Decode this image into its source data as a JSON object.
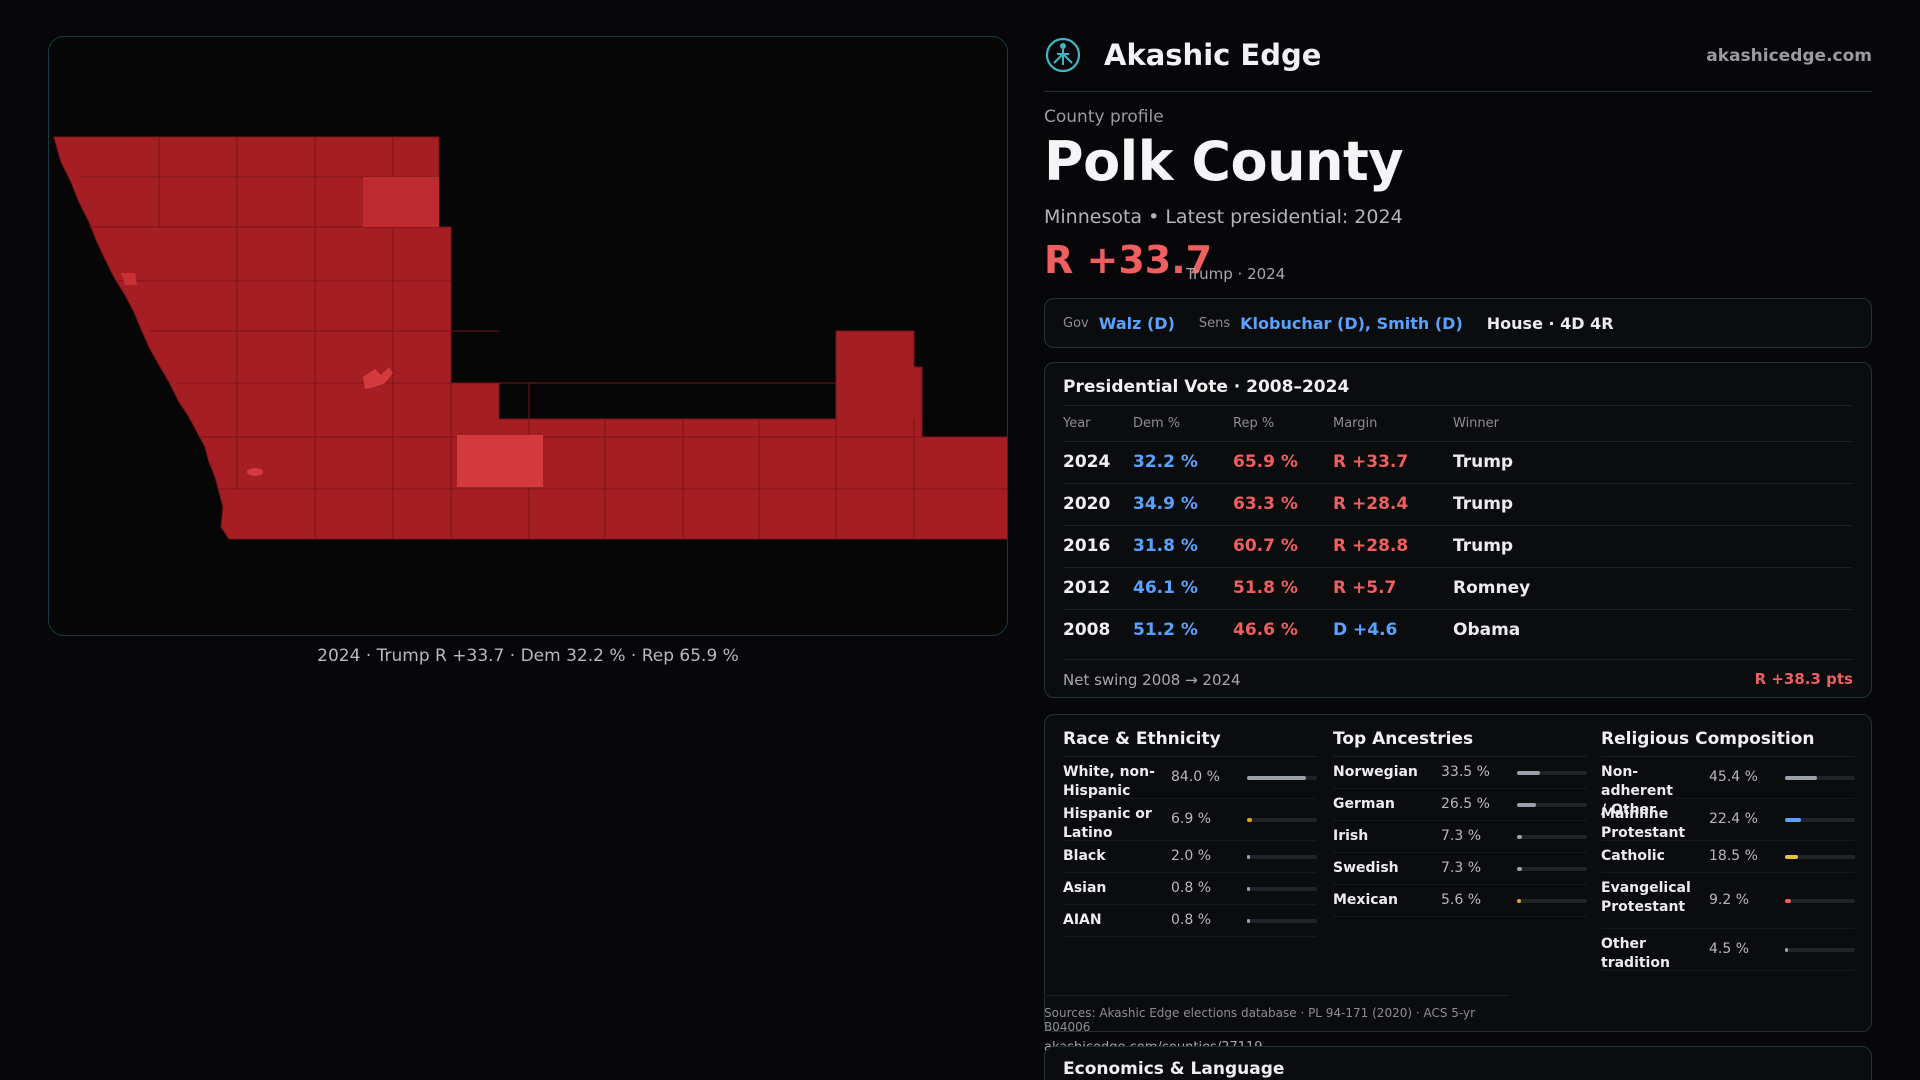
{
  "map": {
    "caption": "2024 · Trump R +33.7 · Dem 32.2 % · Rep 65.9 %"
  },
  "header": {
    "brand": "Akashic Edge",
    "site": "akashicedge.com"
  },
  "profile": {
    "eyebrow": "County profile",
    "title": "Polk County",
    "subtitle": "Minnesota • Latest presidential: 2024",
    "margin": "R +33.7",
    "margin_note": "Trump · 2024"
  },
  "officials": {
    "gov_label": "Gov",
    "gov": "Walz (D)",
    "sens_label": "Sens",
    "sens": "Klobuchar (D), Smith (D)",
    "house": "House · 4D 4R"
  },
  "presidential": {
    "title": "Presidential Vote · 2008–2024",
    "headers": [
      "Year",
      "Dem %",
      "Rep %",
      "Margin",
      "Winner"
    ],
    "rows": [
      {
        "year": "2024",
        "dem": "32.2 %",
        "rep": "65.9 %",
        "margin": "R +33.7",
        "party": "R",
        "winner": "Trump"
      },
      {
        "year": "2020",
        "dem": "34.9 %",
        "rep": "63.3 %",
        "margin": "R +28.4",
        "party": "R",
        "winner": "Trump"
      },
      {
        "year": "2016",
        "dem": "31.8 %",
        "rep": "60.7 %",
        "margin": "R +28.8",
        "party": "R",
        "winner": "Trump"
      },
      {
        "year": "2012",
        "dem": "46.1 %",
        "rep": "51.8 %",
        "margin": "R +5.7",
        "party": "R",
        "winner": "Romney"
      },
      {
        "year": "2008",
        "dem": "51.2 %",
        "rep": "46.6 %",
        "margin": "D +4.6",
        "party": "D",
        "winner": "Obama"
      }
    ],
    "swing_label": "Net swing 2008 → 2024",
    "swing_value": "R +38.3 pts"
  },
  "race": {
    "title": "Race & Ethnicity",
    "items": [
      {
        "name": "White, non-Hispanic",
        "pct": "84.0 %",
        "value": 84.0,
        "color": "#9aa0ac"
      },
      {
        "name": "Hispanic or Latino",
        "pct": "6.9 %",
        "value": 6.9,
        "color": "#e0a52a"
      },
      {
        "name": "Black",
        "pct": "2.0 %",
        "value": 2.0,
        "color": "#9aa0ac"
      },
      {
        "name": "Asian",
        "pct": "0.8 %",
        "value": 0.8,
        "color": "#9aa0ac"
      },
      {
        "name": "AIAN",
        "pct": "0.8 %",
        "value": 0.8,
        "color": "#9aa0ac"
      }
    ]
  },
  "ancestry": {
    "title": "Top Ancestries",
    "items": [
      {
        "name": "Norwegian",
        "pct": "33.5 %",
        "value": 33.5,
        "color": "#9aa0ac"
      },
      {
        "name": "German",
        "pct": "26.5 %",
        "value": 26.5,
        "color": "#9aa0ac"
      },
      {
        "name": "Irish",
        "pct": "7.3 %",
        "value": 7.3,
        "color": "#9aa0ac"
      },
      {
        "name": "Swedish",
        "pct": "7.3 %",
        "value": 7.3,
        "color": "#9aa0ac"
      },
      {
        "name": "Mexican",
        "pct": "5.6 %",
        "value": 5.6,
        "color": "#e0a52a"
      }
    ]
  },
  "religion": {
    "title": "Religious Composition",
    "items": [
      {
        "name": "Non-adherent / Other",
        "pct": "45.4 %",
        "value": 45.4,
        "color": "#9aa0ac"
      },
      {
        "name": "Mainline Protestant",
        "pct": "22.4 %",
        "value": 22.4,
        "color": "#5aa2ff"
      },
      {
        "name": "Catholic",
        "pct": "18.5 %",
        "value": 18.5,
        "color": "#e8c13a"
      },
      {
        "name": "Evangelical Protestant",
        "pct": "9.2 %",
        "value": 9.2,
        "color": "#ef5f5f"
      },
      {
        "name": "Other tradition",
        "pct": "4.5 %",
        "value": 4.5,
        "color": "#9aa0ac"
      }
    ]
  },
  "sources": {
    "line1": "Sources: Akashic Edge elections database · PL 94-171 (2020) · ACS 5-yr B04006",
    "line2": "akashicedge.com/counties/27119"
  },
  "economics": {
    "title": "Economics & Language"
  }
}
